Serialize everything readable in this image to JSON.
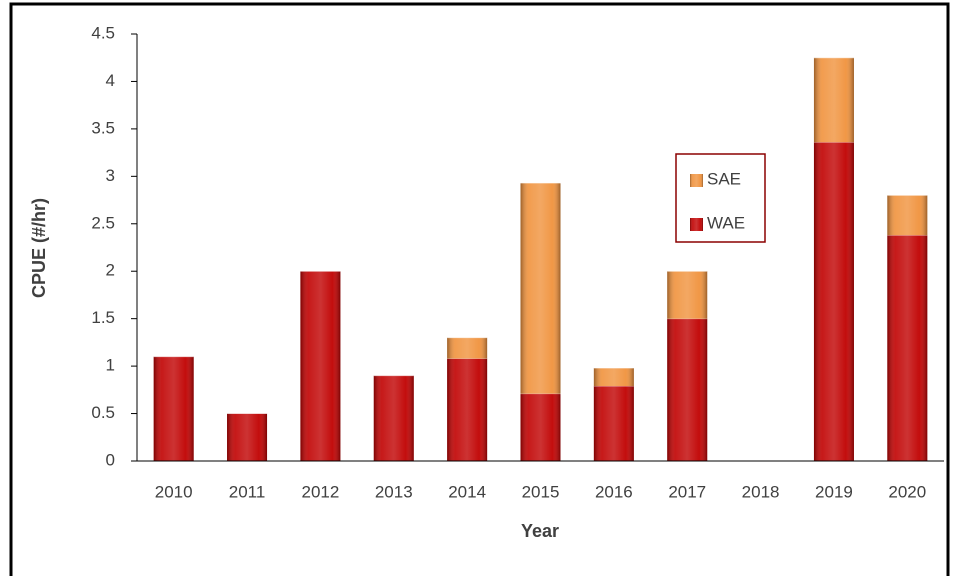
{
  "chart_data": {
    "type": "stacked-bar",
    "ylabel": "CPUE (#/hr)",
    "xlabel": "Year",
    "categories": [
      "2010",
      "2011",
      "2012",
      "2013",
      "2014",
      "2015",
      "2016",
      "2017",
      "2018",
      "2019",
      "2020"
    ],
    "series": [
      {
        "name": "WAE",
        "color": "#c00000",
        "values": [
          1.1,
          0.5,
          2.0,
          0.9,
          1.08,
          0.71,
          0.79,
          1.5,
          0,
          3.36,
          2.38
        ]
      },
      {
        "name": "SAE",
        "color": "#f0923c",
        "values": [
          0,
          0,
          0,
          0,
          0.22,
          2.22,
          0.19,
          0.5,
          0,
          0.89,
          0.42
        ]
      }
    ],
    "ylim": [
      0,
      4.5
    ],
    "yticks": [
      0,
      0.5,
      1,
      1.5,
      2,
      2.5,
      3,
      3.5,
      4,
      4.5
    ],
    "grid": false,
    "legend": "inside-right"
  }
}
